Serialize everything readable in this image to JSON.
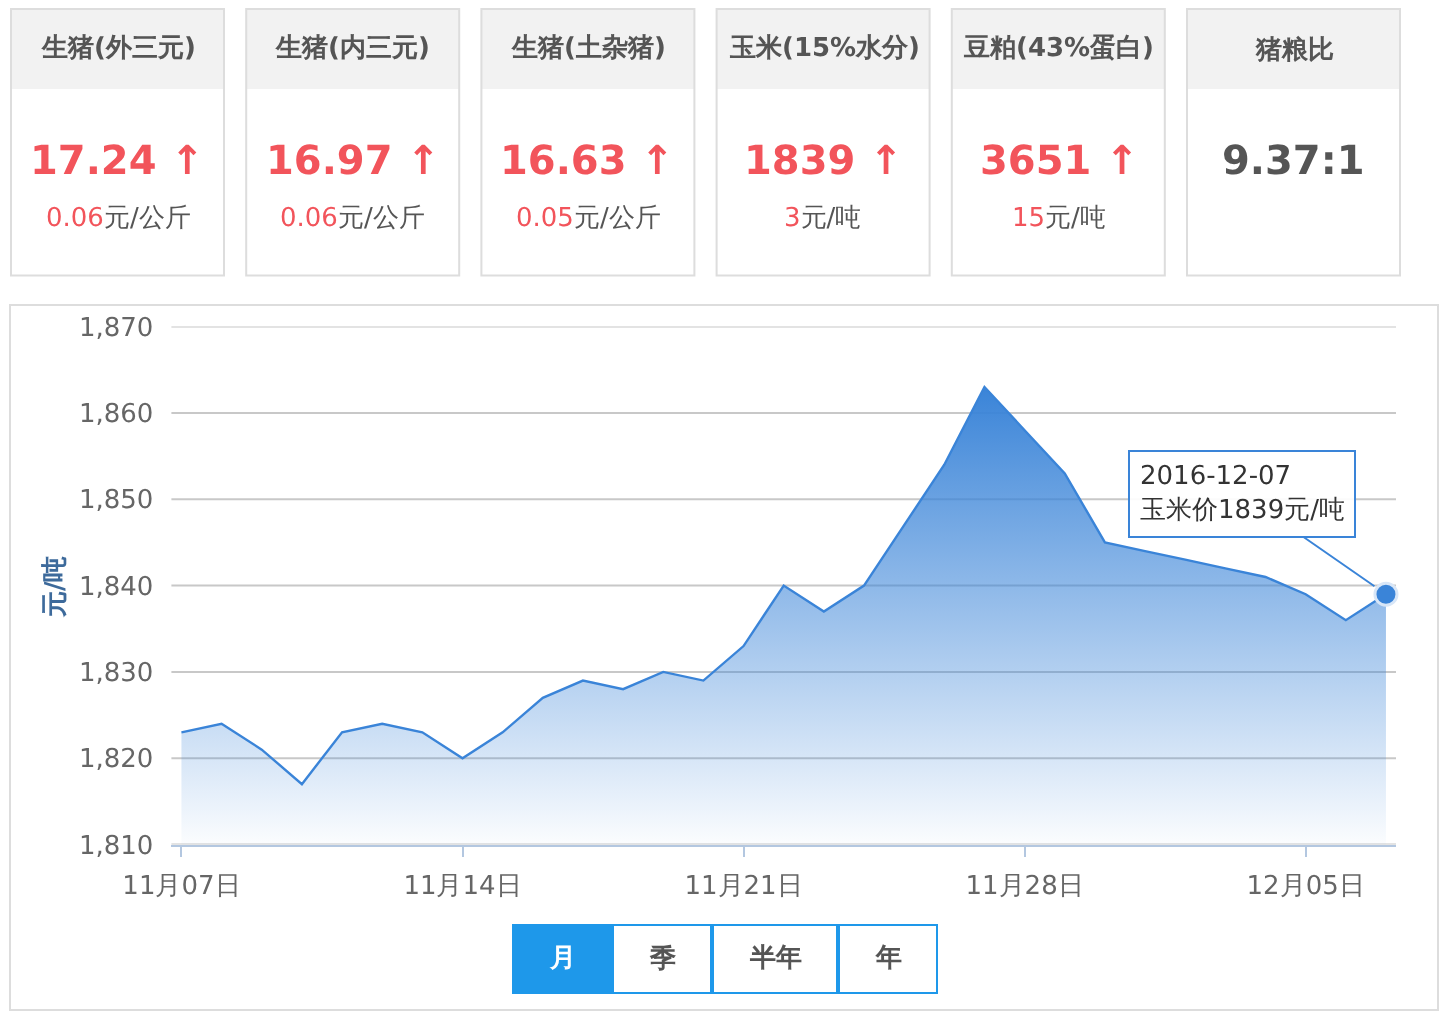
{
  "chart_data": [
    {
      "type": "other",
      "title": "生猪(外三元)",
      "annotations": [
        "17.24 ↑",
        "0.06",
        "元/公斤"
      ],
      "colors": [
        "#f2545b",
        "#f2545b",
        "#555555"
      ]
    },
    {
      "type": "other",
      "title": "生猪(内三元)",
      "annotations": [
        "16.97 ↑",
        "0.06",
        "元/公斤"
      ],
      "colors": [
        "#f2545b",
        "#f2545b",
        "#555555"
      ]
    },
    {
      "type": "other",
      "title": "生猪(土杂猪)",
      "annotations": [
        "16.63 ↑",
        "0.05",
        "元/公斤"
      ],
      "colors": [
        "#f2545b",
        "#f2545b",
        "#555555"
      ]
    },
    {
      "type": "other",
      "title": "玉米(15%水分)",
      "annotations": [
        "1839 ↑",
        "3",
        "元/吨"
      ],
      "colors": [
        "#f2545b",
        "#f2545b",
        "#555555"
      ]
    },
    {
      "type": "other",
      "title": "豆粕(43%蛋白)",
      "annotations": [
        "3651 ↑",
        "15",
        "元/吨"
      ],
      "colors": [
        "#f2545b",
        "#f2545b",
        "#555555"
      ]
    },
    {
      "type": "other",
      "title": "猪粮比",
      "annotations": [
        "9.37:1"
      ],
      "colors": [
        "#555555"
      ]
    },
    {
      "type": "area",
      "ylabel": "元/吨",
      "x": [
        "2016-11-07",
        "2016-11-08",
        "2016-11-09",
        "2016-11-10",
        "2016-11-11",
        "2016-11-12",
        "2016-11-13",
        "2016-11-14",
        "2016-11-15",
        "2016-11-16",
        "2016-11-17",
        "2016-11-18",
        "2016-11-19",
        "2016-11-20",
        "2016-11-21",
        "2016-11-22",
        "2016-11-23",
        "2016-11-24",
        "2016-11-25",
        "2016-11-26",
        "2016-11-27",
        "2016-11-28",
        "2016-11-29",
        "2016-11-30",
        "2016-12-01",
        "2016-12-02",
        "2016-12-03",
        "2016-12-04",
        "2016-12-05",
        "2016-12-06",
        "2016-12-07"
      ],
      "series": [
        {
          "color": "#3a84d8",
          "values": [
            1823,
            1824,
            1821,
            1817,
            1823,
            1824,
            1823,
            1820,
            1823,
            1827,
            1829,
            1828,
            1830,
            1829,
            1833,
            1840,
            1837,
            1840,
            1847,
            1854,
            1863,
            1858,
            1853,
            1845,
            1844,
            1843,
            1842,
            1841,
            1839,
            1836,
            1839
          ]
        }
      ],
      "xlim": [
        "2016-11-06T18:00",
        "2016-12-07T06:00"
      ],
      "xticks": [
        {
          "value": "2016-11-07",
          "label": "11月07日"
        },
        {
          "value": "2016-11-14",
          "label": "11月14日"
        },
        {
          "value": "2016-11-21",
          "label": "11月21日"
        },
        {
          "value": "2016-11-28",
          "label": "11月28日"
        },
        {
          "value": "2016-12-05",
          "label": "12月05日"
        }
      ],
      "ylim": [
        1810,
        1870
      ],
      "yticks": [
        {
          "value": 1810,
          "label": "1,810"
        },
        {
          "value": 1820,
          "label": "1,820"
        },
        {
          "value": 1830,
          "label": "1,830"
        },
        {
          "value": 1840,
          "label": "1,840"
        },
        {
          "value": 1850,
          "label": "1,850"
        },
        {
          "value": 1860,
          "label": "1,860"
        },
        {
          "value": 1870,
          "label": "1,870"
        }
      ],
      "grid": "y",
      "annotations": [
        {
          "text": "2016-12-07\n玉米价1839元/吨",
          "x": "2016-12-07",
          "y": 1839
        }
      ]
    },
    {
      "type": "other",
      "categories": [
        "月",
        "季",
        "半年",
        "年"
      ],
      "colors": [
        "#1e98ea",
        "#ffffff",
        "#ffffff",
        "#ffffff"
      ]
    }
  ]
}
